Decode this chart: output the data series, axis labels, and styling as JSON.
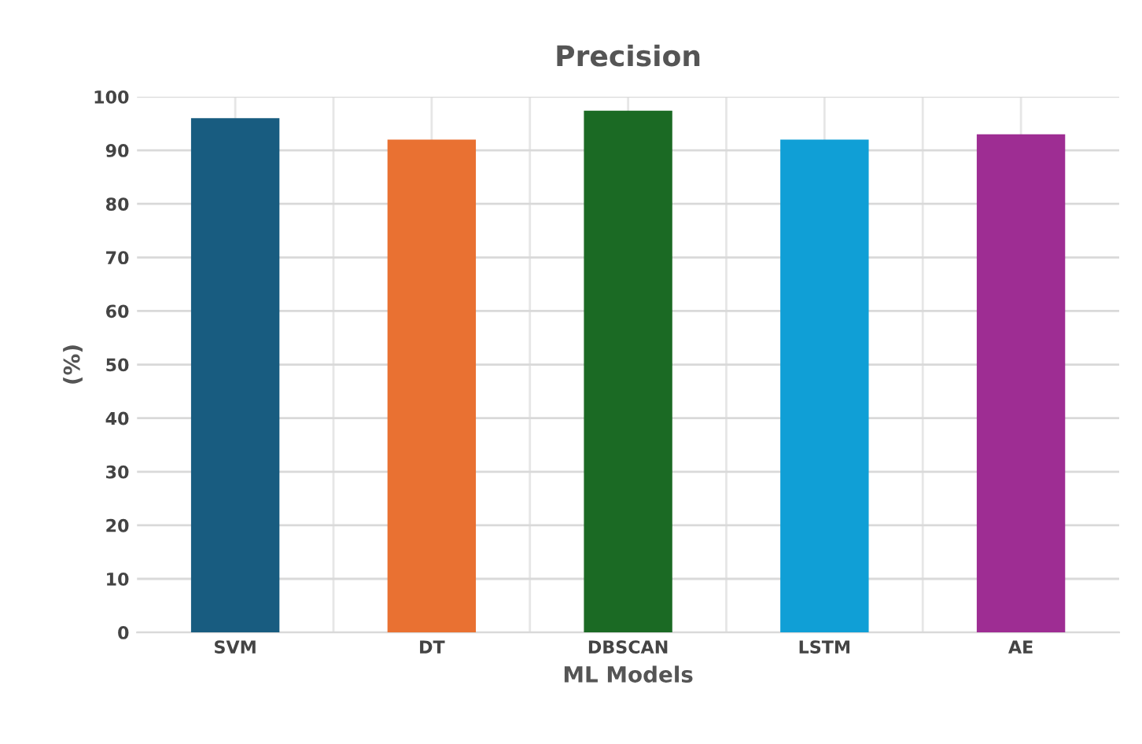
{
  "chart_data": {
    "type": "bar",
    "title": "Precision",
    "xlabel": "ML Models",
    "ylabel": "(%)",
    "categories": [
      "SVM",
      "DT",
      "DBSCAN",
      "LSTM",
      "AE"
    ],
    "values": [
      96,
      92,
      97.4,
      92,
      93
    ],
    "colors": [
      "#185c80",
      "#e97132",
      "#1b6a24",
      "#109fd6",
      "#9e2d93"
    ],
    "ylim": [
      0,
      100
    ],
    "yticks": [
      0,
      10,
      20,
      30,
      40,
      50,
      60,
      70,
      80,
      90,
      100
    ],
    "grid": true,
    "legend": false
  }
}
